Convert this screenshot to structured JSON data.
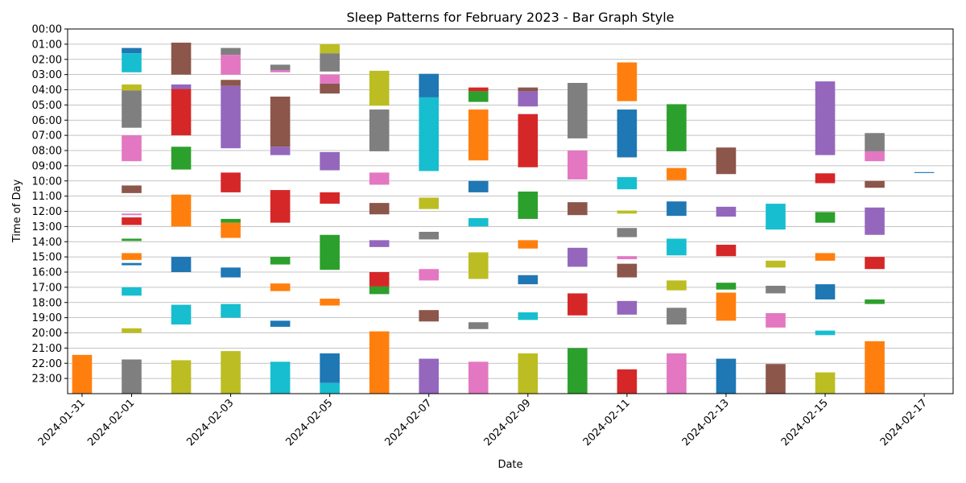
{
  "chart_data": {
    "type": "bar",
    "title": "Sleep Patterns for February 2023 - Bar Graph Style",
    "xlabel": "Date",
    "ylabel": "Time of Day",
    "x_range": [
      "2024-01-30T17:00",
      "2024-02-17T14:00"
    ],
    "y_range_hours": [
      0,
      24
    ],
    "y_axis_inverted": true,
    "grid": "horizontal",
    "y_tick_labels": [
      "00:00",
      "01:00",
      "02:00",
      "03:00",
      "04:00",
      "05:00",
      "06:00",
      "07:00",
      "08:00",
      "09:00",
      "10:00",
      "11:00",
      "12:00",
      "13:00",
      "14:00",
      "15:00",
      "16:00",
      "17:00",
      "18:00",
      "19:00",
      "20:00",
      "21:00",
      "22:00",
      "23:00"
    ],
    "x_tick_labels": [
      "2024-01-31",
      "2024-02-01",
      "2024-02-03",
      "2024-02-05",
      "2024-02-07",
      "2024-02-09",
      "2024-02-11",
      "2024-02-13",
      "2024-02-15",
      "2024-02-17"
    ],
    "bar_width_days": 0.4,
    "series": [
      {
        "date": "2024-01-31",
        "segments": [
          [
            21.45,
            24.0,
            "#ff7f0e"
          ]
        ]
      },
      {
        "date": "2024-02-01",
        "segments": [
          [
            1.25,
            1.6,
            "#1f77b4"
          ],
          [
            1.6,
            2.85,
            "#17becf"
          ],
          [
            3.65,
            4.05,
            "#bcbd22"
          ],
          [
            4.05,
            6.5,
            "#7f7f7f"
          ],
          [
            7.0,
            8.7,
            "#e377c2"
          ],
          [
            10.3,
            10.8,
            "#8c564b"
          ],
          [
            12.15,
            12.25,
            "#e377c2"
          ],
          [
            12.4,
            12.9,
            "#d62728"
          ],
          [
            13.8,
            13.95,
            "#2ca02c"
          ],
          [
            14.75,
            15.2,
            "#ff7f0e"
          ],
          [
            15.4,
            15.55,
            "#1f77b4"
          ],
          [
            17.0,
            17.55,
            "#17becf"
          ],
          [
            19.7,
            20.0,
            "#bcbd22"
          ],
          [
            21.75,
            24.0,
            "#7f7f7f"
          ]
        ]
      },
      {
        "date": "2024-02-02",
        "segments": [
          [
            0.9,
            3.0,
            "#8c564b"
          ],
          [
            3.65,
            3.95,
            "#9467bd"
          ],
          [
            3.95,
            7.0,
            "#d62728"
          ],
          [
            7.75,
            9.25,
            "#2ca02c"
          ],
          [
            10.9,
            13.0,
            "#ff7f0e"
          ],
          [
            15.0,
            16.0,
            "#1f77b4"
          ],
          [
            18.15,
            19.45,
            "#17becf"
          ],
          [
            21.8,
            24.0,
            "#bcbd22"
          ]
        ]
      },
      {
        "date": "2024-02-03",
        "segments": [
          [
            1.25,
            1.7,
            "#7f7f7f"
          ],
          [
            1.7,
            3.0,
            "#e377c2"
          ],
          [
            3.35,
            3.75,
            "#8c564b"
          ],
          [
            3.75,
            7.85,
            "#9467bd"
          ],
          [
            9.45,
            10.75,
            "#d62728"
          ],
          [
            12.5,
            12.75,
            "#2ca02c"
          ],
          [
            12.75,
            13.75,
            "#ff7f0e"
          ],
          [
            15.7,
            16.35,
            "#1f77b4"
          ],
          [
            18.1,
            19.0,
            "#17becf"
          ],
          [
            21.2,
            24.0,
            "#bcbd22"
          ]
        ]
      },
      {
        "date": "2024-02-04",
        "segments": [
          [
            2.35,
            2.7,
            "#7f7f7f"
          ],
          [
            2.7,
            2.85,
            "#e377c2"
          ],
          [
            4.45,
            7.75,
            "#8c564b"
          ],
          [
            7.75,
            8.3,
            "#9467bd"
          ],
          [
            10.6,
            12.75,
            "#d62728"
          ],
          [
            15.0,
            15.5,
            "#2ca02c"
          ],
          [
            16.75,
            17.25,
            "#ff7f0e"
          ],
          [
            19.2,
            19.6,
            "#1f77b4"
          ],
          [
            21.9,
            24.0,
            "#17becf"
          ]
        ]
      },
      {
        "date": "2024-02-05",
        "segments": [
          [
            1.0,
            1.6,
            "#bcbd22"
          ],
          [
            1.6,
            2.8,
            "#7f7f7f"
          ],
          [
            3.0,
            3.6,
            "#e377c2"
          ],
          [
            3.6,
            4.25,
            "#8c564b"
          ],
          [
            8.1,
            9.3,
            "#9467bd"
          ],
          [
            10.75,
            11.5,
            "#d62728"
          ],
          [
            13.55,
            15.85,
            "#2ca02c"
          ],
          [
            17.75,
            18.2,
            "#ff7f0e"
          ],
          [
            21.35,
            23.3,
            "#1f77b4"
          ],
          [
            23.3,
            24.0,
            "#17becf"
          ]
        ]
      },
      {
        "date": "2024-02-06",
        "segments": [
          [
            2.75,
            5.05,
            "#bcbd22"
          ],
          [
            5.3,
            8.05,
            "#7f7f7f"
          ],
          [
            9.45,
            10.25,
            "#e377c2"
          ],
          [
            11.45,
            12.2,
            "#8c564b"
          ],
          [
            13.9,
            14.35,
            "#9467bd"
          ],
          [
            16.0,
            16.95,
            "#d62728"
          ],
          [
            16.95,
            17.45,
            "#2ca02c"
          ],
          [
            19.9,
            24.0,
            "#ff7f0e"
          ]
        ]
      },
      {
        "date": "2024-02-07",
        "segments": [
          [
            2.95,
            4.5,
            "#1f77b4"
          ],
          [
            4.5,
            9.35,
            "#17becf"
          ],
          [
            11.1,
            11.85,
            "#bcbd22"
          ],
          [
            13.35,
            13.85,
            "#7f7f7f"
          ],
          [
            15.8,
            16.55,
            "#e377c2"
          ],
          [
            18.5,
            19.25,
            "#8c564b"
          ],
          [
            21.7,
            24.0,
            "#9467bd"
          ]
        ]
      },
      {
        "date": "2024-02-08",
        "segments": [
          [
            3.85,
            4.1,
            "#d62728"
          ],
          [
            4.1,
            4.8,
            "#2ca02c"
          ],
          [
            5.3,
            8.65,
            "#ff7f0e"
          ],
          [
            10.0,
            10.75,
            "#1f77b4"
          ],
          [
            12.45,
            13.0,
            "#17becf"
          ],
          [
            14.7,
            16.45,
            "#bcbd22"
          ],
          [
            19.3,
            19.75,
            "#7f7f7f"
          ],
          [
            21.9,
            24.0,
            "#e377c2"
          ]
        ]
      },
      {
        "date": "2024-02-09",
        "segments": [
          [
            3.85,
            4.1,
            "#8c564b"
          ],
          [
            4.1,
            5.1,
            "#9467bd"
          ],
          [
            5.6,
            9.1,
            "#d62728"
          ],
          [
            10.7,
            12.5,
            "#2ca02c"
          ],
          [
            13.9,
            14.45,
            "#ff7f0e"
          ],
          [
            16.2,
            16.8,
            "#1f77b4"
          ],
          [
            18.65,
            19.15,
            "#17becf"
          ],
          [
            21.35,
            24.0,
            "#bcbd22"
          ]
        ]
      },
      {
        "date": "2024-02-10",
        "segments": [
          [
            3.55,
            7.2,
            "#7f7f7f"
          ],
          [
            8.0,
            9.9,
            "#e377c2"
          ],
          [
            11.4,
            12.25,
            "#8c564b"
          ],
          [
            14.4,
            15.65,
            "#9467bd"
          ],
          [
            17.4,
            18.85,
            "#d62728"
          ],
          [
            21.0,
            24.0,
            "#2ca02c"
          ]
        ]
      },
      {
        "date": "2024-02-11",
        "segments": [
          [
            2.2,
            4.75,
            "#ff7f0e"
          ],
          [
            5.3,
            8.45,
            "#1f77b4"
          ],
          [
            9.75,
            10.55,
            "#17becf"
          ],
          [
            11.95,
            12.15,
            "#bcbd22"
          ],
          [
            13.1,
            13.7,
            "#7f7f7f"
          ],
          [
            14.95,
            15.15,
            "#e377c2"
          ],
          [
            15.45,
            16.35,
            "#8c564b"
          ],
          [
            17.9,
            18.8,
            "#9467bd"
          ],
          [
            22.4,
            24.0,
            "#d62728"
          ]
        ]
      },
      {
        "date": "2024-02-12",
        "segments": [
          [
            4.95,
            8.05,
            "#2ca02c"
          ],
          [
            9.15,
            9.95,
            "#ff7f0e"
          ],
          [
            11.35,
            12.3,
            "#1f77b4"
          ],
          [
            13.8,
            14.9,
            "#17becf"
          ],
          [
            16.55,
            17.2,
            "#bcbd22"
          ],
          [
            18.35,
            19.45,
            "#7f7f7f"
          ],
          [
            21.35,
            24.0,
            "#e377c2"
          ]
        ]
      },
      {
        "date": "2024-02-13",
        "segments": [
          [
            7.8,
            9.55,
            "#8c564b"
          ],
          [
            11.7,
            12.35,
            "#9467bd"
          ],
          [
            14.2,
            14.95,
            "#d62728"
          ],
          [
            16.7,
            17.15,
            "#2ca02c"
          ],
          [
            17.35,
            19.2,
            "#ff7f0e"
          ],
          [
            21.7,
            24.0,
            "#1f77b4"
          ]
        ]
      },
      {
        "date": "2024-02-14",
        "segments": [
          [
            11.5,
            13.2,
            "#17becf"
          ],
          [
            15.25,
            15.7,
            "#bcbd22"
          ],
          [
            16.9,
            17.4,
            "#7f7f7f"
          ],
          [
            18.7,
            19.65,
            "#e377c2"
          ],
          [
            22.05,
            24.0,
            "#8c564b"
          ]
        ]
      },
      {
        "date": "2024-02-15",
        "segments": [
          [
            3.45,
            8.3,
            "#9467bd"
          ],
          [
            9.5,
            10.15,
            "#d62728"
          ],
          [
            12.05,
            12.75,
            "#2ca02c"
          ],
          [
            14.75,
            15.25,
            "#ff7f0e"
          ],
          [
            16.8,
            17.8,
            "#1f77b4"
          ],
          [
            19.85,
            20.15,
            "#17becf"
          ],
          [
            22.6,
            24.0,
            "#bcbd22"
          ]
        ]
      },
      {
        "date": "2024-02-16",
        "segments": [
          [
            6.85,
            8.05,
            "#7f7f7f"
          ],
          [
            8.05,
            8.7,
            "#e377c2"
          ],
          [
            10.0,
            10.45,
            "#8c564b"
          ],
          [
            11.75,
            13.55,
            "#9467bd"
          ],
          [
            15.0,
            15.8,
            "#d62728"
          ],
          [
            17.8,
            18.1,
            "#2ca02c"
          ],
          [
            20.55,
            24.0,
            "#ff7f0e"
          ]
        ]
      },
      {
        "date": "2024-02-17",
        "segments": [
          [
            9.42,
            9.48,
            "#1f77b4"
          ]
        ]
      }
    ]
  }
}
